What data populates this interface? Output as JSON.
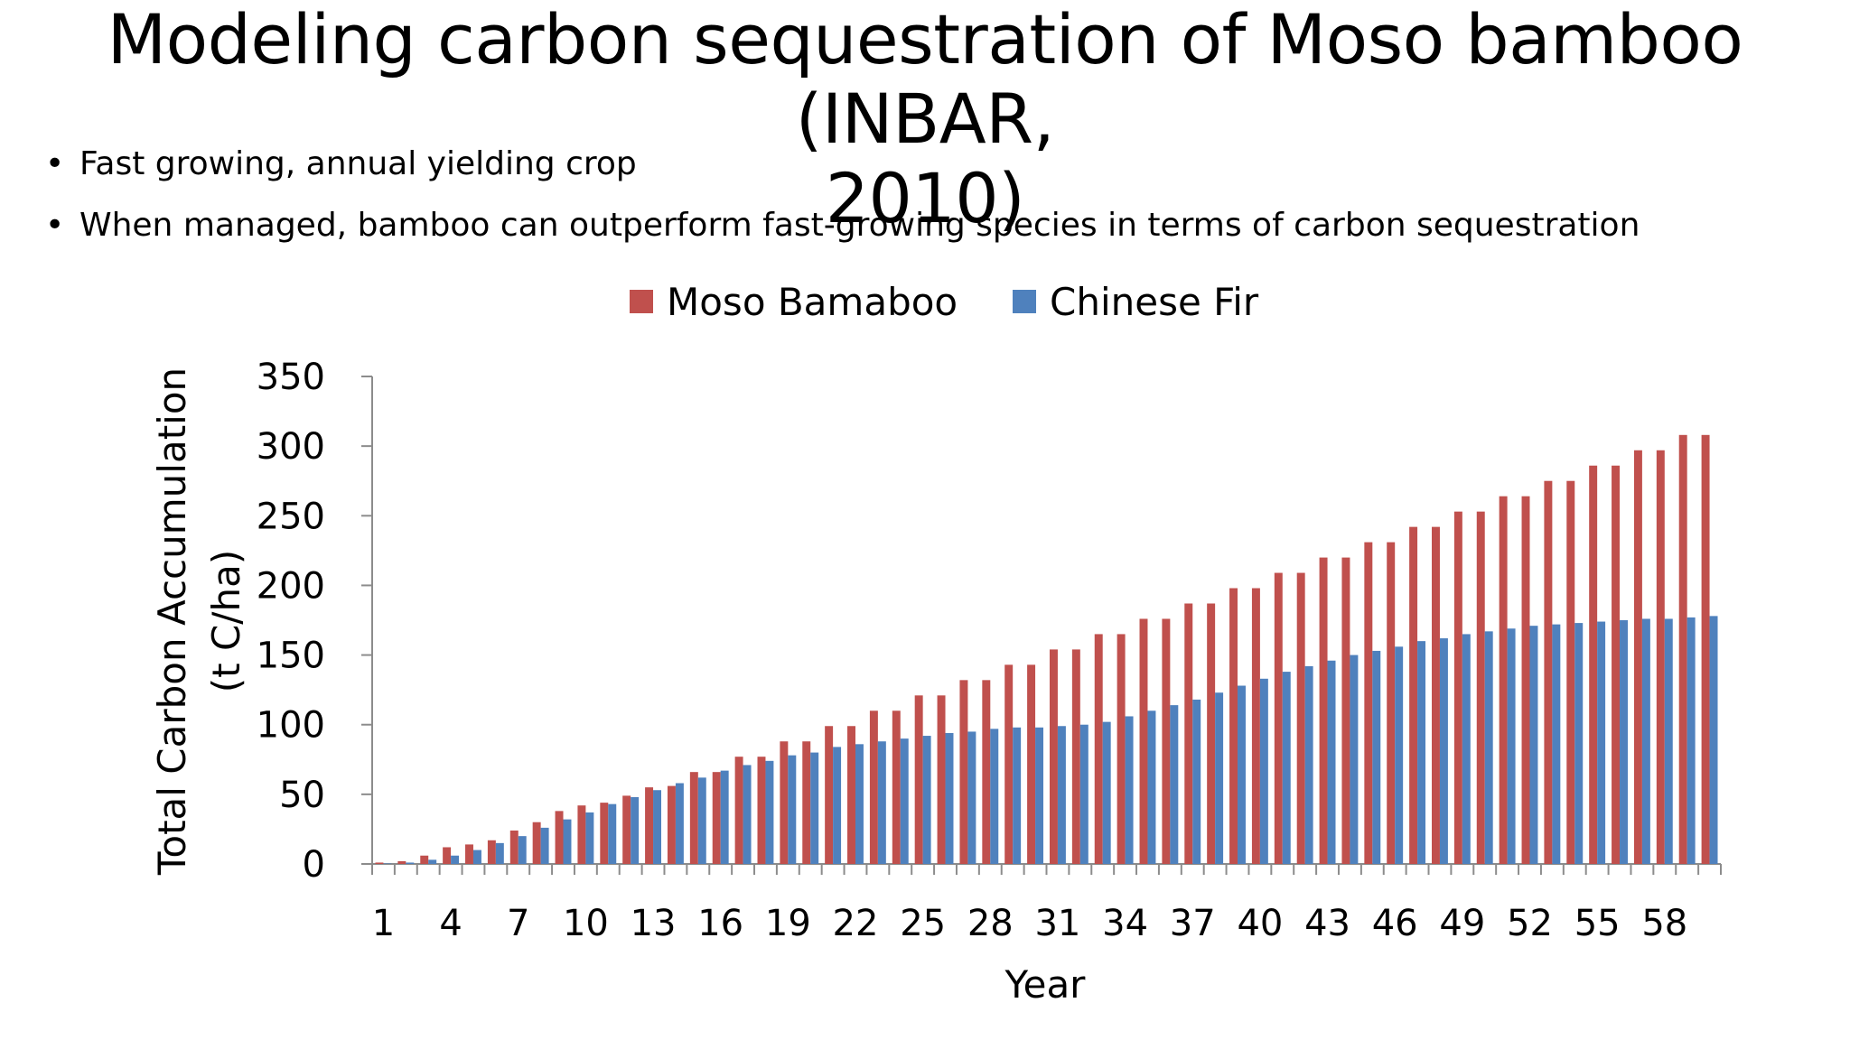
{
  "slide": {
    "title_line1": "Modeling carbon sequestration of Moso bamboo (INBAR,",
    "title_line2": "2010)",
    "bullets": [
      "Fast growing, annual yielding crop",
      "When managed, bamboo can outperform fast-growing species in terms of carbon sequestration"
    ],
    "bullet_glyph": "•"
  },
  "chart_data": {
    "type": "bar",
    "xlabel": "Year",
    "ylabel_line1": "Total Carbon Accumulation",
    "ylabel_line2": "(t C/ha)",
    "ylim": [
      0,
      350
    ],
    "yticks": [
      0,
      50,
      100,
      150,
      200,
      250,
      300,
      350
    ],
    "categories": [
      1,
      2,
      3,
      4,
      5,
      6,
      7,
      8,
      9,
      10,
      11,
      12,
      13,
      14,
      15,
      16,
      17,
      18,
      19,
      20,
      21,
      22,
      23,
      24,
      25,
      26,
      27,
      28,
      29,
      30,
      31,
      32,
      33,
      34,
      35,
      36,
      37,
      38,
      39,
      40,
      41,
      42,
      43,
      44,
      45,
      46,
      47,
      48,
      49,
      50,
      51,
      52,
      53,
      54,
      55,
      56,
      57,
      58,
      59,
      60
    ],
    "tick_labels": [
      "1",
      "4",
      "7",
      "10",
      "13",
      "16",
      "19",
      "22",
      "25",
      "28",
      "31",
      "34",
      "37",
      "40",
      "43",
      "46",
      "49",
      "52",
      "55",
      "58"
    ],
    "legend_position": "top",
    "gridlines": false,
    "series": [
      {
        "name": "Moso Bamaboo",
        "color": "#c0504d",
        "values": [
          1,
          2,
          6,
          12,
          14,
          17,
          24,
          30,
          38,
          42,
          44,
          49,
          55,
          56,
          66,
          66,
          77,
          77,
          88,
          88,
          99,
          99,
          110,
          110,
          121,
          121,
          132,
          132,
          143,
          143,
          154,
          154,
          165,
          165,
          176,
          176,
          187,
          187,
          198,
          198,
          209,
          209,
          220,
          220,
          231,
          231,
          242,
          242,
          253,
          253,
          264,
          264,
          275,
          275,
          286,
          286,
          297,
          297,
          308,
          308
        ]
      },
      {
        "name": "Chinese Fir",
        "color": "#4f81bd",
        "values": [
          0,
          1,
          3,
          6,
          10,
          15,
          20,
          26,
          32,
          37,
          43,
          48,
          53,
          58,
          62,
          67,
          71,
          74,
          78,
          80,
          84,
          86,
          88,
          90,
          92,
          94,
          95,
          97,
          98,
          98,
          99,
          100,
          102,
          106,
          110,
          114,
          118,
          123,
          128,
          133,
          138,
          142,
          146,
          150,
          153,
          156,
          160,
          162,
          165,
          167,
          169,
          171,
          172,
          173,
          174,
          175,
          176,
          176,
          177,
          178
        ]
      }
    ]
  }
}
